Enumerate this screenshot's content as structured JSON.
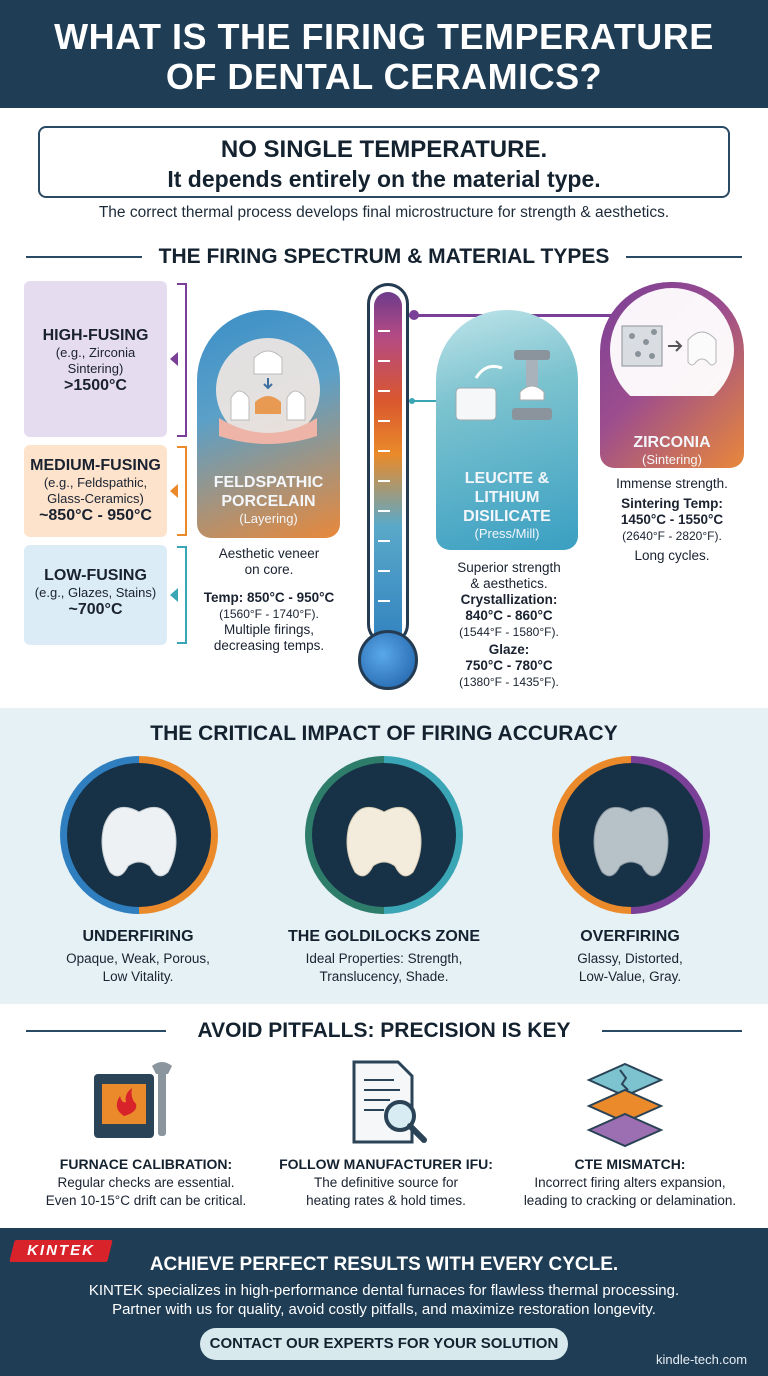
{
  "header": {
    "title_line1": "WHAT IS THE FIRING TEMPERATURE",
    "title_line2": "OF DENTAL CERAMICS?"
  },
  "intro": {
    "headline": "NO SINGLE TEMPERATURE.",
    "subheadline": "It depends entirely on the material type.",
    "note": "The correct thermal process develops final microstructure for strength & aesthetics."
  },
  "spectrum": {
    "title": "THE FIRING SPECTRUM & MATERIAL TYPES",
    "fusing": [
      {
        "heading": "HIGH-FUSING",
        "example1": "(e.g., Zirconia",
        "example2": "Sintering)",
        "temp": ">1500°C",
        "color": "#e6dcef"
      },
      {
        "heading": "MEDIUM-FUSING",
        "example1": "(e.g., Feldspathic,",
        "example2": "Glass-Ceramics)",
        "temp": "~850°C - 950°C",
        "color": "#fde3cc"
      },
      {
        "heading": "LOW-FUSING",
        "example1": "(e.g., Glazes, Stains)",
        "example2": "",
        "temp": "~700°C",
        "color": "#dcecf7"
      }
    ],
    "materials": [
      {
        "name1": "FELDSPATHIC",
        "name2": "PORCELAIN",
        "name3": "",
        "method": "(Layering)",
        "desc1": "Aesthetic veneer",
        "desc2": "on core.",
        "temp_label": "Temp: 850°C - 950°C",
        "temp_f": "(1560°F - 1740°F).",
        "note1": "Multiple firings,",
        "note2": "decreasing temps."
      },
      {
        "name1": "LEUCITE &",
        "name2": "LITHIUM",
        "name3": "DISILICATE",
        "method": "(Press/Mill)",
        "desc1": "Superior strength",
        "desc2": "& aesthetics.",
        "cryst_label": "Crystallization:",
        "cryst_c": "840°C - 860°C",
        "cryst_f": "(1544°F - 1580°F).",
        "glaze_label": "Glaze:",
        "glaze_c": "750°C - 780°C",
        "glaze_f": "(1380°F - 1435°F)."
      },
      {
        "name1": "ZIRCONIA",
        "method": "(Sintering)",
        "desc1": "Immense strength.",
        "temp_label": "Sintering Temp:",
        "temp_c": "1450°C - 1550°C",
        "temp_f": "(2640°F - 2820°F).",
        "note1": "Long cycles."
      }
    ]
  },
  "impact": {
    "title": "THE CRITICAL IMPACT OF FIRING ACCURACY",
    "items": [
      {
        "heading": "UNDERFIRING",
        "line1": "Opaque, Weak, Porous,",
        "line2": "Low Vitality."
      },
      {
        "heading": "THE GOLDILOCKS ZONE",
        "line1": "Ideal Properties: Strength,",
        "line2": "Translucency, Shade."
      },
      {
        "heading": "OVERFIRING",
        "line1": "Glassy, Distorted,",
        "line2": "Low-Value, Gray."
      }
    ]
  },
  "pitfalls": {
    "title": "AVOID PITFALLS: PRECISION IS KEY",
    "items": [
      {
        "heading": "FURNACE CALIBRATION:",
        "line1": "Regular checks are essential.",
        "line2": "Even 10-15°C drift can be critical.",
        "icon": "furnace-icon"
      },
      {
        "heading": "FOLLOW MANUFACTURER IFU:",
        "line1": "The definitive source for",
        "line2": "heating rates & hold times.",
        "icon": "document-search-icon"
      },
      {
        "heading": "CTE MISMATCH:",
        "line1": "Incorrect firing alters expansion,",
        "line2": "leading to cracking or delamination.",
        "icon": "cracked-layers-icon"
      }
    ]
  },
  "footer": {
    "logo": "KINTEK",
    "title": "ACHIEVE PERFECT RESULTS WITH EVERY CYCLE.",
    "line1": "KINTEK specializes in high-performance dental furnaces for flawless thermal processing.",
    "line2": "Partner with us for quality, avoid costly pitfalls, and maximize restoration longevity.",
    "cta": "CONTACT OUR EXPERTS FOR YOUR SOLUTION",
    "site": "kindle-tech.com"
  },
  "colors": {
    "navy": "#1f3d55",
    "purple": "#7a3f96",
    "orange": "#ea8a2a",
    "teal": "#3aa6b5",
    "blue": "#2f7fc0"
  }
}
